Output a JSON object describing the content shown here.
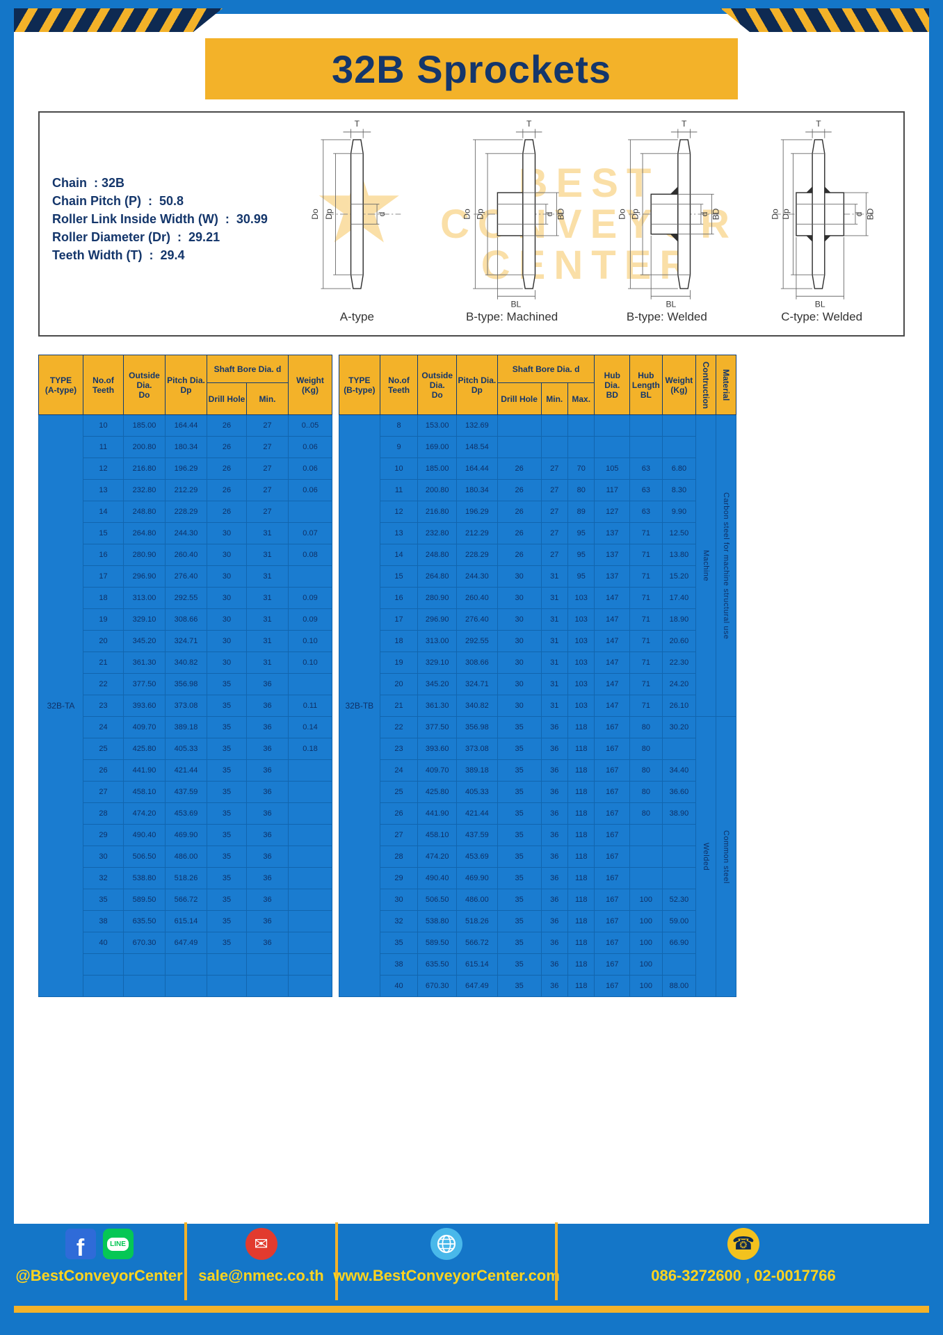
{
  "page": {
    "title": "32B Sprockets"
  },
  "colors": {
    "accent": "#f3b229",
    "frame_blue": "#1476c8",
    "navy": "#14366b",
    "cell_blue": "#1a7cd0",
    "footer_yellow": "#ffd41e"
  },
  "specs": {
    "lines": [
      "Chain  : 32B",
      "Chain Pitch (P)  :  50.8",
      "Roller Link Inside Width (W)  :  30.99",
      "Roller Diameter (Dr)  :  29.21",
      "Teeth Width (T)  :  29.4"
    ]
  },
  "watermark": {
    "star": "★",
    "line1": "BEST",
    "line2": "CONVEYOR",
    "line3": "CENTER"
  },
  "diagrams": [
    {
      "caption": "A-type",
      "T": "T",
      "Do": "Do",
      "Dp": "Dp",
      "d": "d"
    },
    {
      "caption": "B-type: Machined",
      "T": "T",
      "Do": "Do",
      "Dp": "Dp",
      "d": "d",
      "BD": "BD",
      "BL": "BL"
    },
    {
      "caption": "B-type: Welded",
      "T": "T",
      "Do": "Do",
      "Dp": "Dp",
      "d": "d",
      "BD": "BD",
      "BL": "BL"
    },
    {
      "caption": "C-type: Welded",
      "T": "T",
      "Do": "Do",
      "Dp": "Dp",
      "d": "d",
      "BD": "BD",
      "BL": "BL"
    }
  ],
  "table_a": {
    "headers": {
      "type": "TYPE\n(A-type)",
      "teeth": "No.of\nTeeth",
      "outside": "Outside\nDia.\nDo",
      "pitch": "Pitch Dia.\nDp",
      "shaft": "Shaft Bore Dia. d",
      "drill": "Drill Hole",
      "min": "Min.",
      "weight": "Weight\n(Kg)"
    },
    "type_value": "32B-TA",
    "rows": [
      [
        "10",
        "185.00",
        "164.44",
        "26",
        "27",
        "0..05"
      ],
      [
        "11",
        "200.80",
        "180.34",
        "26",
        "27",
        "0.06"
      ],
      [
        "12",
        "216.80",
        "196.29",
        "26",
        "27",
        "0.06"
      ],
      [
        "13",
        "232.80",
        "212.29",
        "26",
        "27",
        "0.06"
      ],
      [
        "14",
        "248.80",
        "228.29",
        "26",
        "27",
        ""
      ],
      [
        "15",
        "264.80",
        "244.30",
        "30",
        "31",
        "0.07"
      ],
      [
        "16",
        "280.90",
        "260.40",
        "30",
        "31",
        "0.08"
      ],
      [
        "17",
        "296.90",
        "276.40",
        "30",
        "31",
        ""
      ],
      [
        "18",
        "313.00",
        "292.55",
        "30",
        "31",
        "0.09"
      ],
      [
        "19",
        "329.10",
        "308.66",
        "30",
        "31",
        "0.09"
      ],
      [
        "20",
        "345.20",
        "324.71",
        "30",
        "31",
        "0.10"
      ],
      [
        "21",
        "361.30",
        "340.82",
        "30",
        "31",
        "0.10"
      ],
      [
        "22",
        "377.50",
        "356.98",
        "35",
        "36",
        ""
      ],
      [
        "23",
        "393.60",
        "373.08",
        "35",
        "36",
        "0.11"
      ],
      [
        "24",
        "409.70",
        "389.18",
        "35",
        "36",
        "0.14"
      ],
      [
        "25",
        "425.80",
        "405.33",
        "35",
        "36",
        "0.18"
      ],
      [
        "26",
        "441.90",
        "421.44",
        "35",
        "36",
        ""
      ],
      [
        "27",
        "458.10",
        "437.59",
        "35",
        "36",
        ""
      ],
      [
        "28",
        "474.20",
        "453.69",
        "35",
        "36",
        ""
      ],
      [
        "29",
        "490.40",
        "469.90",
        "35",
        "36",
        ""
      ],
      [
        "30",
        "506.50",
        "486.00",
        "35",
        "36",
        ""
      ],
      [
        "32",
        "538.80",
        "518.26",
        "35",
        "36",
        ""
      ],
      [
        "35",
        "589.50",
        "566.72",
        "35",
        "36",
        ""
      ],
      [
        "38",
        "635.50",
        "615.14",
        "35",
        "36",
        ""
      ],
      [
        "40",
        "670.30",
        "647.49",
        "35",
        "36",
        ""
      ],
      [
        "",
        "",
        "",
        "",
        "",
        ""
      ],
      [
        "",
        "",
        "",
        "",
        "",
        ""
      ]
    ]
  },
  "table_b": {
    "headers": {
      "type": "TYPE\n(B-type)",
      "teeth": "No.of\nTeeth",
      "outside": "Outside\nDia.\nDo",
      "pitch": "Pitch Dia.\nDp",
      "shaft": "Shaft Bore Dia. d",
      "drill": "Drill Hole",
      "min": "Min.",
      "max": "Max.",
      "hub_dia": "Hub Dia.\nBD",
      "hub_len": "Hub\nLength\nBL",
      "weight": "Weight\n(Kg)",
      "construction": "Contruction",
      "material": "Material"
    },
    "type_value": "32B-TB",
    "rows": [
      [
        "8",
        "153.00",
        "132.69",
        "",
        "",
        "",
        "",
        "",
        ""
      ],
      [
        "9",
        "169.00",
        "148.54",
        "",
        "",
        "",
        "",
        "",
        ""
      ],
      [
        "10",
        "185.00",
        "164.44",
        "26",
        "27",
        "70",
        "105",
        "63",
        "6.80"
      ],
      [
        "11",
        "200.80",
        "180.34",
        "26",
        "27",
        "80",
        "117",
        "63",
        "8.30"
      ],
      [
        "12",
        "216.80",
        "196.29",
        "26",
        "27",
        "89",
        "127",
        "63",
        "9.90"
      ],
      [
        "13",
        "232.80",
        "212.29",
        "26",
        "27",
        "95",
        "137",
        "71",
        "12.50"
      ],
      [
        "14",
        "248.80",
        "228.29",
        "26",
        "27",
        "95",
        "137",
        "71",
        "13.80"
      ],
      [
        "15",
        "264.80",
        "244.30",
        "30",
        "31",
        "95",
        "137",
        "71",
        "15.20"
      ],
      [
        "16",
        "280.90",
        "260.40",
        "30",
        "31",
        "103",
        "147",
        "71",
        "17.40"
      ],
      [
        "17",
        "296.90",
        "276.40",
        "30",
        "31",
        "103",
        "147",
        "71",
        "18.90"
      ],
      [
        "18",
        "313.00",
        "292.55",
        "30",
        "31",
        "103",
        "147",
        "71",
        "20.60"
      ],
      [
        "19",
        "329.10",
        "308.66",
        "30",
        "31",
        "103",
        "147",
        "71",
        "22.30"
      ],
      [
        "20",
        "345.20",
        "324.71",
        "30",
        "31",
        "103",
        "147",
        "71",
        "24.20"
      ],
      [
        "21",
        "361.30",
        "340.82",
        "30",
        "31",
        "103",
        "147",
        "71",
        "26.10"
      ],
      [
        "22",
        "377.50",
        "356.98",
        "35",
        "36",
        "118",
        "167",
        "80",
        "30.20"
      ],
      [
        "23",
        "393.60",
        "373.08",
        "35",
        "36",
        "118",
        "167",
        "80",
        ""
      ],
      [
        "24",
        "409.70",
        "389.18",
        "35",
        "36",
        "118",
        "167",
        "80",
        "34.40"
      ],
      [
        "25",
        "425.80",
        "405.33",
        "35",
        "36",
        "118",
        "167",
        "80",
        "36.60"
      ],
      [
        "26",
        "441.90",
        "421.44",
        "35",
        "36",
        "118",
        "167",
        "80",
        "38.90"
      ],
      [
        "27",
        "458.10",
        "437.59",
        "35",
        "36",
        "118",
        "167",
        "",
        ""
      ],
      [
        "28",
        "474.20",
        "453.69",
        "35",
        "36",
        "118",
        "167",
        "",
        ""
      ],
      [
        "29",
        "490.40",
        "469.90",
        "35",
        "36",
        "118",
        "167",
        "",
        ""
      ],
      [
        "30",
        "506.50",
        "486.00",
        "35",
        "36",
        "118",
        "167",
        "100",
        "52.30"
      ],
      [
        "32",
        "538.80",
        "518.26",
        "35",
        "36",
        "118",
        "167",
        "100",
        "59.00"
      ],
      [
        "35",
        "589.50",
        "566.72",
        "35",
        "36",
        "118",
        "167",
        "100",
        "66.90"
      ],
      [
        "38",
        "635.50",
        "615.14",
        "35",
        "36",
        "118",
        "167",
        "100",
        ""
      ],
      [
        "40",
        "670.30",
        "647.49",
        "35",
        "36",
        "118",
        "167",
        "100",
        "88.00"
      ]
    ],
    "spans": [
      [
        {
          "label": "Machine",
          "start": 0,
          "count": 14
        },
        {
          "label": "Welded",
          "start": 14,
          "count": 13
        }
      ],
      [
        {
          "label": "Carbon steel for machine structural use",
          "start": 0,
          "count": 14
        },
        {
          "label": "Common steel",
          "start": 14,
          "count": 13
        }
      ]
    ]
  },
  "footer": {
    "facebook_glyph": "f",
    "line_glyph": "LINE",
    "email_glyph": "✉",
    "phone_glyph": "☎",
    "social_handle": "@BestConveyorCenter",
    "email": "sale@nmec.co.th",
    "website": "www.BestConveyorCenter.com",
    "phones": "086-3272600 , 02-0017766"
  }
}
